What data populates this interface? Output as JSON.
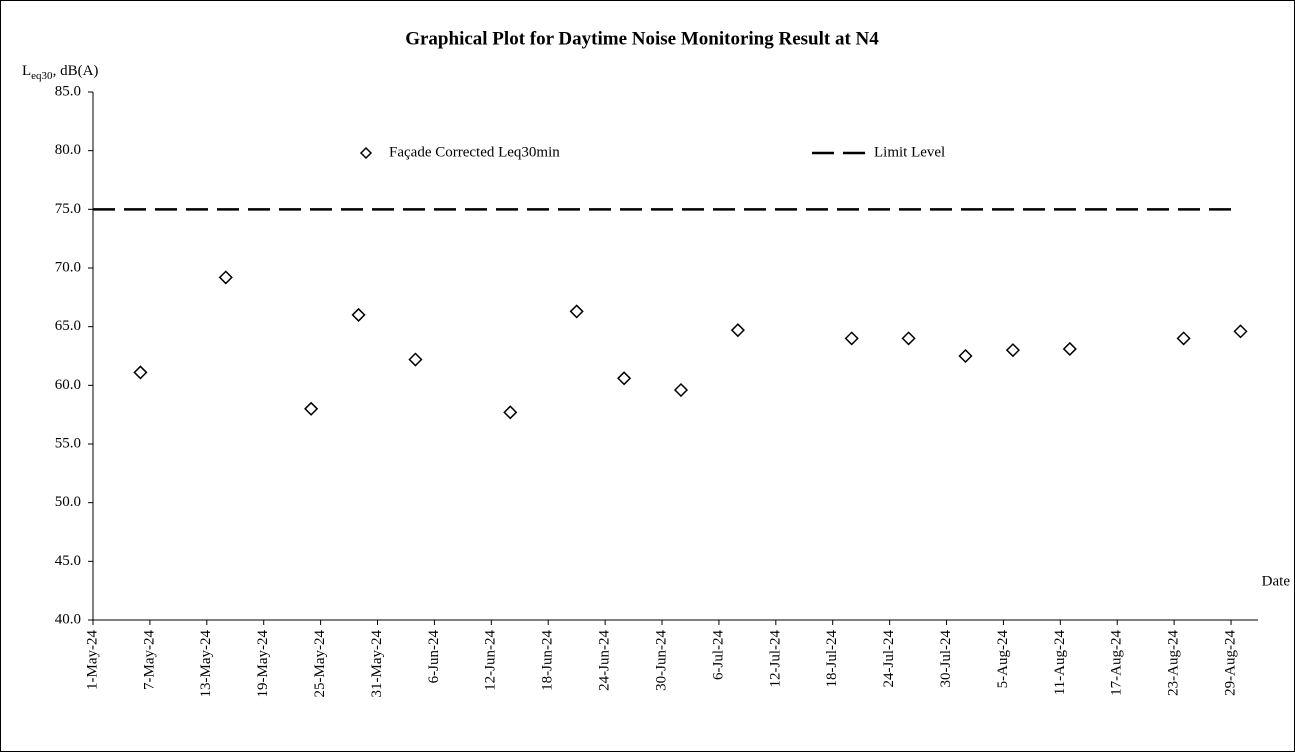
{
  "chart_data": {
    "type": "scatter",
    "title": "Graphical Plot for Daytime Noise Monitoring Result at N4",
    "y_label": {
      "main": "L",
      "sub": "eq30",
      "rest": ", dB(A)"
    },
    "x_label": "Date",
    "series": [
      {
        "name": "Façade Corrected Leq30min",
        "color": "#000000",
        "marker": "diamond",
        "x": [
          "2024-05-06",
          "2024-05-15",
          "2024-05-24",
          "2024-05-29",
          "2024-06-04",
          "2024-06-14",
          "2024-06-21",
          "2024-06-26",
          "2024-07-02",
          "2024-07-08",
          "2024-07-20",
          "2024-07-26",
          "2024-08-01",
          "2024-08-06",
          "2024-08-12",
          "2024-08-24",
          "2024-08-30"
        ],
        "values": [
          61.1,
          69.2,
          58.0,
          66.0,
          62.2,
          57.7,
          66.3,
          60.6,
          59.6,
          64.7,
          64.0,
          64.0,
          62.5,
          63.0,
          63.1,
          64.0,
          64.6
        ]
      }
    ],
    "limit": {
      "name": "Limit Level",
      "value": 75,
      "color": "#000000",
      "dashed": true
    },
    "xlim": [
      "2024-05-01",
      "2024-08-31"
    ],
    "xticks": [
      {
        "value": "2024-05-01",
        "label": "1-May-24"
      },
      {
        "value": "2024-05-07",
        "label": "7-May-24"
      },
      {
        "value": "2024-05-13",
        "label": "13-May-24"
      },
      {
        "value": "2024-05-19",
        "label": "19-May-24"
      },
      {
        "value": "2024-05-25",
        "label": "25-May-24"
      },
      {
        "value": "2024-05-31",
        "label": "31-May-24"
      },
      {
        "value": "2024-06-06",
        "label": "6-Jun-24"
      },
      {
        "value": "2024-06-12",
        "label": "12-Jun-24"
      },
      {
        "value": "2024-06-18",
        "label": "18-Jun-24"
      },
      {
        "value": "2024-06-24",
        "label": "24-Jun-24"
      },
      {
        "value": "2024-06-30",
        "label": "30-Jun-24"
      },
      {
        "value": "2024-07-06",
        "label": "6-Jul-24"
      },
      {
        "value": "2024-07-12",
        "label": "12-Jul-24"
      },
      {
        "value": "2024-07-18",
        "label": "18-Jul-24"
      },
      {
        "value": "2024-07-24",
        "label": "24-Jul-24"
      },
      {
        "value": "2024-07-30",
        "label": "30-Jul-24"
      },
      {
        "value": "2024-08-05",
        "label": "5-Aug-24"
      },
      {
        "value": "2024-08-11",
        "label": "11-Aug-24"
      },
      {
        "value": "2024-08-17",
        "label": "17-Aug-24"
      },
      {
        "value": "2024-08-23",
        "label": "23-Aug-24"
      },
      {
        "value": "2024-08-29",
        "label": "29-Aug-24"
      }
    ],
    "ylim": [
      40,
      85
    ],
    "yticks": [
      {
        "value": 40,
        "label": "40.0"
      },
      {
        "value": 45,
        "label": "45.0"
      },
      {
        "value": 50,
        "label": "50.0"
      },
      {
        "value": 55,
        "label": "55.0"
      },
      {
        "value": 60,
        "label": "60.0"
      },
      {
        "value": 65,
        "label": "65.0"
      },
      {
        "value": 70,
        "label": "70.0"
      },
      {
        "value": 75,
        "label": "75.0"
      },
      {
        "value": 80,
        "label": "80.0"
      },
      {
        "value": 85,
        "label": "85.0"
      }
    ],
    "grid": false
  }
}
